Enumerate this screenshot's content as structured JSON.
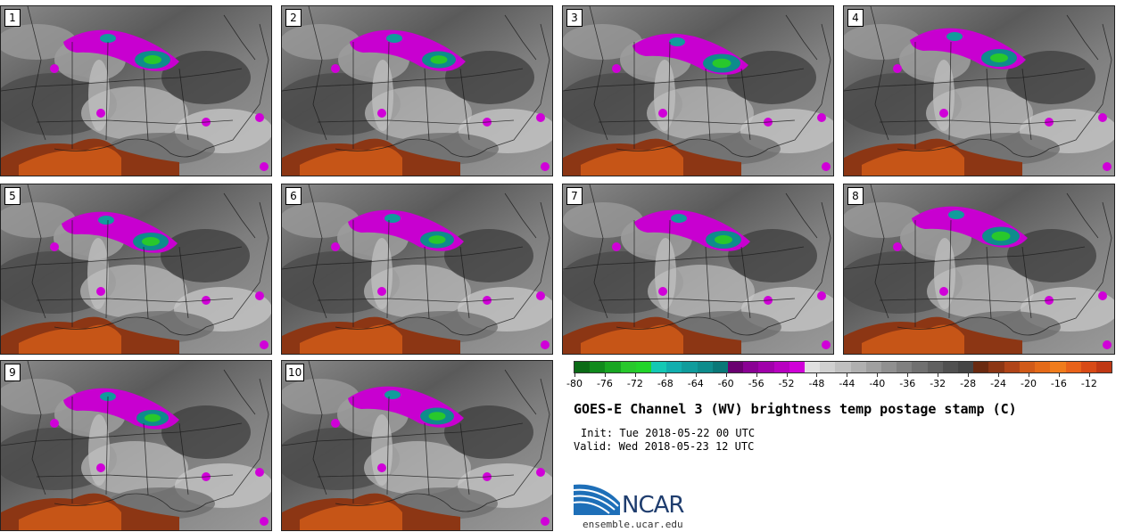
{
  "panels": [
    {
      "label": "1"
    },
    {
      "label": "2"
    },
    {
      "label": "3"
    },
    {
      "label": "4"
    },
    {
      "label": "5"
    },
    {
      "label": "6"
    },
    {
      "label": "7"
    },
    {
      "label": "8"
    },
    {
      "label": "9"
    },
    {
      "label": "10"
    }
  ],
  "colorbar": {
    "tick_labels": [
      "-80",
      "-76",
      "-72",
      "-68",
      "-64",
      "-60",
      "-56",
      "-52",
      "-48",
      "-44",
      "-40",
      "-36",
      "-32",
      "-28",
      "-24",
      "-20",
      "-16",
      "-12"
    ],
    "colors": [
      "#0b6b16",
      "#108a1c",
      "#18a622",
      "#28c82c",
      "#22d42a",
      "#14c8b4",
      "#12aeae",
      "#109c9c",
      "#0e8c8c",
      "#0a7878",
      "#6a0070",
      "#8a0094",
      "#a000aa",
      "#b800c0",
      "#d000d8",
      "#e0e0e0",
      "#d0d0d0",
      "#c0c0c0",
      "#b0b0b0",
      "#a0a0a0",
      "#909090",
      "#808080",
      "#707070",
      "#606060",
      "#505050",
      "#444444",
      "#6a2a10",
      "#8c3614",
      "#b04418",
      "#d05a18",
      "#e46a18",
      "#f07c1c",
      "#e8621a",
      "#d84a16",
      "#c03814"
    ]
  },
  "title": "GOES-E Channel 3 (WV) brightness temp postage stamp (C)",
  "init": "Init: Tue 2018-05-22 00 UTC",
  "valid": "Valid: Wed 2018-05-23 12 UTC",
  "logo": {
    "text": "NCAR",
    "color": "#1f3d6e",
    "swoosh_color": "#1e6fb8"
  },
  "site": "ensemble.ucar.edu"
}
